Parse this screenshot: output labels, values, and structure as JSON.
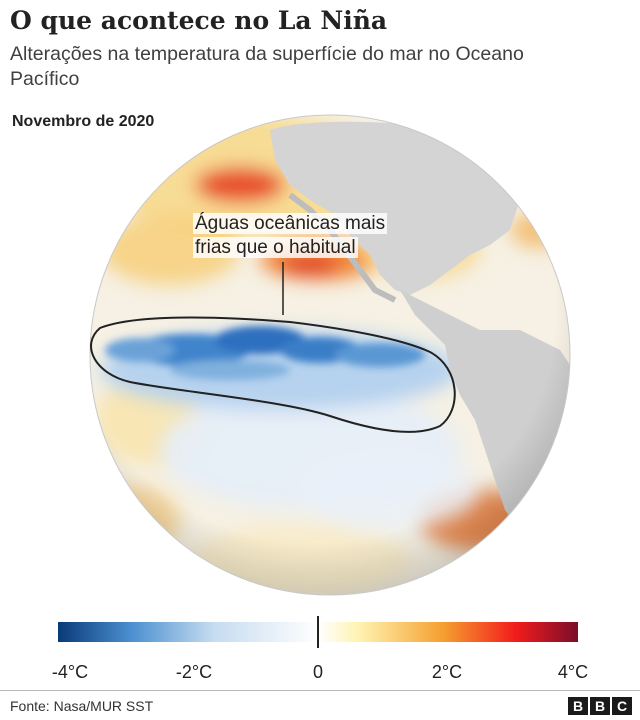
{
  "title": "O que acontece no La Niña",
  "subtitle": "Alterações na temperatura da superfície do mar no Oceano Pacífico",
  "date_label": "Novembro de 2020",
  "annotation": {
    "line1": "Águas oceânicas mais",
    "line2": "frias que o habitual"
  },
  "legend": {
    "ticks": [
      "-4°C",
      "-2°C",
      "0",
      "2°C",
      "4°C"
    ],
    "min": -4,
    "max": 4,
    "colors": {
      "cold_dark": "#0a3a78",
      "cold_mid": "#4b8fd0",
      "cold_light": "#c6dcf0",
      "neutral": "#ffffff",
      "warm_light": "#fff2b0",
      "warm_mid": "#f5a030",
      "warm_strong": "#f21c1c",
      "warm_dark": "#7a0e2a"
    }
  },
  "source": "Fonte: Nasa/MUR SST",
  "logo": [
    "B",
    "B",
    "C"
  ]
}
